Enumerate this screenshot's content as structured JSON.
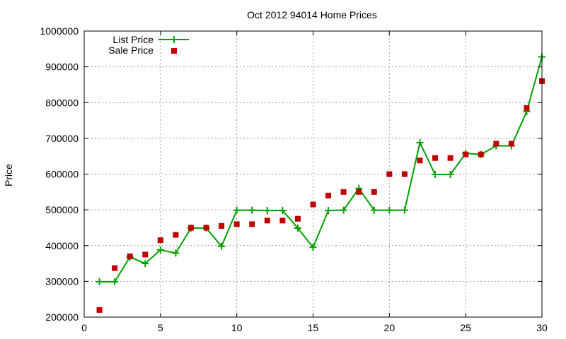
{
  "chart_data": {
    "type": "line",
    "title": "Oct 2012 94014 Home Prices",
    "xlabel": "",
    "ylabel": "Price",
    "xlim": [
      0,
      30
    ],
    "ylim": [
      200000,
      1000000
    ],
    "xticks": [
      "0",
      "5",
      "10",
      "15",
      "20",
      "25",
      "30"
    ],
    "yticks": [
      "200000",
      "300000",
      "400000",
      "500000",
      "600000",
      "700000",
      "800000",
      "900000",
      "1000000"
    ],
    "grid": true,
    "legend": "top-left",
    "x": [
      1,
      2,
      3,
      4,
      5,
      6,
      7,
      8,
      9,
      10,
      11,
      12,
      13,
      14,
      15,
      16,
      17,
      18,
      19,
      20,
      21,
      22,
      23,
      24,
      25,
      26,
      27,
      28,
      29,
      30
    ],
    "series": [
      {
        "name": "List Price",
        "style": "line+cross",
        "color": "#00a000",
        "values": [
          299000,
          299000,
          368000,
          350000,
          388000,
          379000,
          449000,
          449000,
          398000,
          499000,
          499000,
          498000,
          498000,
          449000,
          395000,
          498000,
          499000,
          560000,
          499000,
          499000,
          499000,
          688000,
          599000,
          599000,
          658000,
          655000,
          679000,
          679000,
          775000,
          928000
        ]
      },
      {
        "name": "Sale Price",
        "style": "square",
        "color": "#c00000",
        "values": [
          220000,
          337000,
          370000,
          375000,
          415000,
          430000,
          450000,
          450000,
          455000,
          460000,
          460000,
          470000,
          470000,
          475000,
          515000,
          540000,
          550000,
          550000,
          550000,
          600000,
          600000,
          638000,
          645000,
          645000,
          655000,
          655000,
          685000,
          685000,
          785000,
          860000
        ]
      }
    ]
  }
}
